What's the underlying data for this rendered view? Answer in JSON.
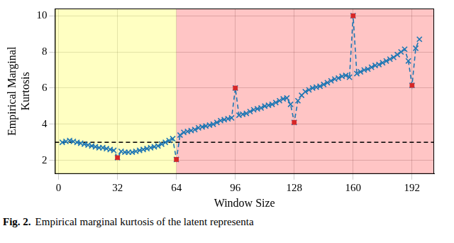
{
  "chart_data": {
    "type": "line",
    "xlabel": "Window Size",
    "ylabel": [
      "Empirical Marginal",
      "Kurtosis"
    ],
    "caption_label": "Fig. 2.",
    "caption": "Empirical marginal kurtosis of the latent representa",
    "xlim": [
      -2,
      204
    ],
    "xticks": [
      0,
      32,
      64,
      96,
      128,
      160,
      192
    ],
    "ylim": [
      1.25,
      10.4
    ],
    "yticks": [
      2,
      4,
      6,
      8,
      10
    ],
    "grid": true,
    "series": [
      {
        "type": "line",
        "color": "#1f77b4",
        "marker": "x",
        "line_style": "dashed",
        "x": [
          2,
          4,
          6,
          8,
          10,
          12,
          14,
          16,
          18,
          20,
          22,
          24,
          26,
          28,
          30,
          32,
          34,
          36,
          38,
          40,
          42,
          44,
          46,
          48,
          50,
          52,
          54,
          56,
          58,
          60,
          62,
          64,
          66,
          68,
          70,
          72,
          74,
          76,
          78,
          80,
          82,
          84,
          86,
          88,
          90,
          92,
          94,
          96,
          98,
          100,
          102,
          104,
          106,
          108,
          110,
          112,
          114,
          116,
          118,
          120,
          122,
          124,
          126,
          128,
          130,
          132,
          134,
          136,
          138,
          140,
          142,
          144,
          146,
          148,
          150,
          152,
          154,
          156,
          158,
          160,
          162,
          164,
          166,
          168,
          170,
          172,
          174,
          176,
          178,
          180,
          182,
          184,
          186,
          188,
          190,
          192,
          194,
          196
        ],
        "values": [
          3.0,
          3.05,
          3.1,
          3.05,
          3.0,
          2.95,
          2.9,
          2.85,
          2.8,
          2.75,
          2.7,
          2.7,
          2.65,
          2.6,
          2.55,
          2.15,
          2.5,
          2.45,
          2.45,
          2.45,
          2.5,
          2.55,
          2.6,
          2.65,
          2.7,
          2.75,
          2.8,
          2.9,
          3.0,
          3.1,
          3.2,
          2.05,
          3.4,
          3.55,
          3.6,
          3.65,
          3.7,
          3.8,
          3.85,
          3.9,
          3.95,
          4.0,
          4.1,
          4.2,
          4.25,
          4.3,
          4.35,
          6.0,
          4.5,
          4.55,
          4.6,
          4.7,
          4.8,
          4.85,
          4.9,
          5.0,
          5.05,
          5.1,
          5.2,
          5.3,
          5.4,
          5.45,
          5.1,
          4.1,
          5.3,
          5.6,
          5.8,
          5.9,
          6.0,
          6.05,
          6.1,
          6.2,
          6.3,
          6.4,
          6.5,
          6.55,
          6.65,
          6.7,
          6.6,
          10.0,
          6.8,
          6.9,
          7.0,
          7.05,
          7.15,
          7.25,
          7.3,
          7.4,
          7.5,
          7.6,
          7.7,
          7.85,
          8.0,
          8.15,
          7.5,
          6.15,
          8.2,
          8.7
        ]
      },
      {
        "type": "scatter",
        "color": "#d62728",
        "marker": "square",
        "line_style": "none",
        "x": [
          32,
          64,
          96,
          128,
          160,
          192
        ],
        "values": [
          2.15,
          2.05,
          6.0,
          4.1,
          10.0,
          6.15
        ]
      }
    ],
    "regions": [
      {
        "from": -2,
        "to": 64,
        "color": "rgba(255,255,120,0.45)"
      },
      {
        "from": 64,
        "to": 204,
        "color": "rgba(255,90,90,0.35)"
      }
    ],
    "hlines": [
      {
        "value": 3,
        "color": "#000000",
        "line_style": "dashed"
      }
    ]
  }
}
